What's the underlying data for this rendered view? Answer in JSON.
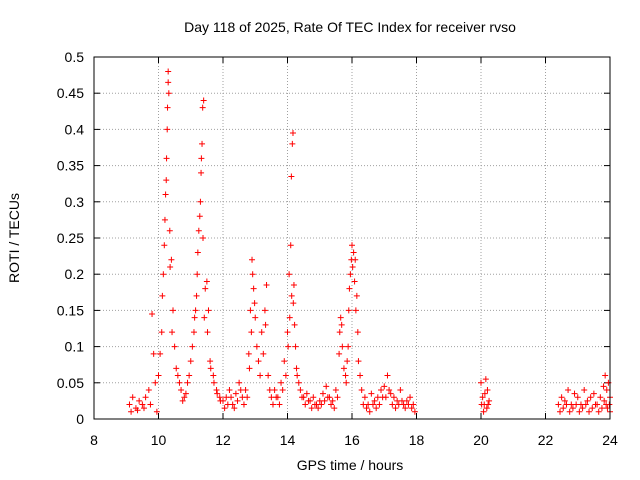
{
  "chart_data": {
    "type": "scatter",
    "title": "Day 118 of 2025, Rate Of TEC Index for receiver rvso",
    "xlabel": "GPS time / hours",
    "ylabel": "ROTI / TECUs",
    "xlim": [
      8,
      24
    ],
    "ylim": [
      0,
      0.5
    ],
    "xticks": [
      8,
      10,
      12,
      14,
      16,
      18,
      20,
      22,
      24
    ],
    "xtick_labels": [
      "8",
      "10",
      "12",
      "14",
      "16",
      "18",
      "20",
      "22",
      "24"
    ],
    "yticks": [
      0,
      0.05,
      0.1,
      0.15,
      0.2,
      0.25,
      0.3,
      0.35,
      0.4,
      0.45,
      0.5
    ],
    "ytick_labels": [
      "0",
      "0.05",
      "0.1",
      "0.15",
      "0.2",
      "0.25",
      "0.3",
      "0.35",
      "0.4",
      "0.45",
      "0.5"
    ],
    "grid": true,
    "marker": "+",
    "color": "#ff0000",
    "series": [
      {
        "name": "ROTI",
        "points": [
          [
            9.1,
            0.02
          ],
          [
            9.2,
            0.03
          ],
          [
            9.3,
            0.015
          ],
          [
            9.4,
            0.025
          ],
          [
            9.5,
            0.02
          ],
          [
            9.6,
            0.03
          ],
          [
            9.7,
            0.04
          ],
          [
            9.8,
            0.145
          ],
          [
            9.85,
            0.09
          ],
          [
            9.9,
            0.05
          ],
          [
            10.0,
            0.06
          ],
          [
            10.1,
            0.12
          ],
          [
            10.15,
            0.2
          ],
          [
            10.2,
            0.275
          ],
          [
            10.22,
            0.31
          ],
          [
            10.25,
            0.36
          ],
          [
            10.27,
            0.4
          ],
          [
            10.28,
            0.43
          ],
          [
            10.3,
            0.465
          ],
          [
            10.3,
            0.48
          ],
          [
            10.32,
            0.45
          ],
          [
            10.35,
            0.26
          ],
          [
            10.4,
            0.22
          ],
          [
            10.45,
            0.15
          ],
          [
            10.5,
            0.1
          ],
          [
            10.6,
            0.06
          ],
          [
            10.7,
            0.04
          ],
          [
            10.8,
            0.03
          ],
          [
            10.9,
            0.05
          ],
          [
            11.0,
            0.08
          ],
          [
            11.1,
            0.12
          ],
          [
            11.15,
            0.15
          ],
          [
            11.2,
            0.2
          ],
          [
            11.25,
            0.26
          ],
          [
            11.3,
            0.3
          ],
          [
            11.32,
            0.34
          ],
          [
            11.35,
            0.38
          ],
          [
            11.37,
            0.43
          ],
          [
            11.4,
            0.44
          ],
          [
            11.45,
            0.18
          ],
          [
            11.5,
            0.19
          ],
          [
            11.55,
            0.15
          ],
          [
            11.6,
            0.08
          ],
          [
            11.7,
            0.06
          ],
          [
            11.8,
            0.04
          ],
          [
            11.9,
            0.03
          ],
          [
            12.0,
            0.025
          ],
          [
            12.1,
            0.03
          ],
          [
            12.2,
            0.04
          ],
          [
            12.3,
            0.02
          ],
          [
            12.4,
            0.035
          ],
          [
            12.5,
            0.05
          ],
          [
            12.6,
            0.03
          ],
          [
            12.7,
            0.04
          ],
          [
            12.8,
            0.09
          ],
          [
            12.85,
            0.15
          ],
          [
            12.9,
            0.22
          ],
          [
            12.95,
            0.18
          ],
          [
            13.0,
            0.14
          ],
          [
            13.1,
            0.08
          ],
          [
            13.2,
            0.12
          ],
          [
            13.3,
            0.15
          ],
          [
            13.35,
            0.185
          ],
          [
            13.4,
            0.06
          ],
          [
            13.5,
            0.03
          ],
          [
            13.6,
            0.04
          ],
          [
            13.7,
            0.03
          ],
          [
            13.8,
            0.05
          ],
          [
            13.9,
            0.08
          ],
          [
            14.0,
            0.12
          ],
          [
            14.05,
            0.2
          ],
          [
            14.1,
            0.24
          ],
          [
            14.12,
            0.335
          ],
          [
            14.15,
            0.38
          ],
          [
            14.17,
            0.395
          ],
          [
            14.2,
            0.185
          ],
          [
            14.25,
            0.1
          ],
          [
            14.3,
            0.06
          ],
          [
            14.4,
            0.04
          ],
          [
            14.5,
            0.03
          ],
          [
            14.6,
            0.035
          ],
          [
            14.7,
            0.025
          ],
          [
            14.8,
            0.03
          ],
          [
            14.9,
            0.02
          ],
          [
            15.0,
            0.025
          ],
          [
            15.1,
            0.035
          ],
          [
            15.2,
            0.045
          ],
          [
            15.3,
            0.03
          ],
          [
            15.4,
            0.025
          ],
          [
            15.5,
            0.04
          ],
          [
            15.6,
            0.09
          ],
          [
            15.65,
            0.14
          ],
          [
            15.7,
            0.1
          ],
          [
            15.8,
            0.06
          ],
          [
            15.85,
            0.08
          ],
          [
            15.9,
            0.15
          ],
          [
            15.95,
            0.2
          ],
          [
            16.0,
            0.24
          ],
          [
            16.05,
            0.23
          ],
          [
            16.1,
            0.22
          ],
          [
            16.15,
            0.17
          ],
          [
            16.2,
            0.08
          ],
          [
            16.3,
            0.04
          ],
          [
            16.4,
            0.03
          ],
          [
            16.5,
            0.02
          ],
          [
            16.6,
            0.035
          ],
          [
            16.7,
            0.025
          ],
          [
            16.8,
            0.03
          ],
          [
            16.9,
            0.04
          ],
          [
            17.0,
            0.045
          ],
          [
            17.1,
            0.06
          ],
          [
            17.2,
            0.035
          ],
          [
            17.3,
            0.03
          ],
          [
            17.4,
            0.025
          ],
          [
            17.5,
            0.04
          ],
          [
            17.6,
            0.02
          ],
          [
            17.7,
            0.025
          ],
          [
            17.8,
            0.03
          ],
          [
            17.9,
            0.02
          ],
          [
            20.0,
            0.05
          ],
          [
            20.05,
            0.03
          ],
          [
            20.1,
            0.02
          ],
          [
            20.15,
            0.055
          ],
          [
            20.2,
            0.04
          ],
          [
            20.25,
            0.025
          ],
          [
            22.4,
            0.02
          ],
          [
            22.5,
            0.03
          ],
          [
            22.6,
            0.025
          ],
          [
            22.7,
            0.04
          ],
          [
            22.8,
            0.02
          ],
          [
            22.9,
            0.035
          ],
          [
            23.0,
            0.03
          ],
          [
            23.1,
            0.02
          ],
          [
            23.2,
            0.04
          ],
          [
            23.3,
            0.025
          ],
          [
            23.4,
            0.03
          ],
          [
            23.5,
            0.035
          ],
          [
            23.6,
            0.02
          ],
          [
            23.7,
            0.03
          ],
          [
            23.8,
            0.045
          ],
          [
            23.85,
            0.06
          ],
          [
            23.9,
            0.04
          ],
          [
            23.95,
            0.05
          ],
          [
            24.0,
            0.03
          ],
          [
            9.15,
            0.01
          ],
          [
            9.35,
            0.012
          ],
          [
            9.55,
            0.015
          ],
          [
            9.75,
            0.02
          ],
          [
            9.95,
            0.01
          ],
          [
            10.05,
            0.09
          ],
          [
            10.12,
            0.17
          ],
          [
            10.18,
            0.24
          ],
          [
            10.24,
            0.33
          ],
          [
            10.36,
            0.21
          ],
          [
            10.42,
            0.12
          ],
          [
            10.55,
            0.07
          ],
          [
            10.65,
            0.05
          ],
          [
            10.75,
            0.025
          ],
          [
            10.85,
            0.035
          ],
          [
            10.95,
            0.06
          ],
          [
            11.05,
            0.1
          ],
          [
            11.12,
            0.14
          ],
          [
            11.18,
            0.17
          ],
          [
            11.22,
            0.23
          ],
          [
            11.28,
            0.28
          ],
          [
            11.33,
            0.36
          ],
          [
            11.38,
            0.25
          ],
          [
            11.42,
            0.14
          ],
          [
            11.52,
            0.12
          ],
          [
            11.62,
            0.07
          ],
          [
            11.72,
            0.05
          ],
          [
            11.82,
            0.035
          ],
          [
            11.92,
            0.025
          ],
          [
            12.05,
            0.015
          ],
          [
            12.15,
            0.02
          ],
          [
            12.25,
            0.03
          ],
          [
            12.35,
            0.015
          ],
          [
            12.45,
            0.025
          ],
          [
            12.55,
            0.04
          ],
          [
            12.65,
            0.02
          ],
          [
            12.75,
            0.03
          ],
          [
            12.82,
            0.07
          ],
          [
            12.88,
            0.12
          ],
          [
            12.92,
            0.2
          ],
          [
            12.98,
            0.16
          ],
          [
            13.05,
            0.1
          ],
          [
            13.15,
            0.06
          ],
          [
            13.25,
            0.09
          ],
          [
            13.32,
            0.13
          ],
          [
            13.45,
            0.04
          ],
          [
            13.55,
            0.02
          ],
          [
            13.65,
            0.03
          ],
          [
            13.75,
            0.02
          ],
          [
            13.85,
            0.04
          ],
          [
            13.95,
            0.06
          ],
          [
            14.02,
            0.1
          ],
          [
            14.07,
            0.14
          ],
          [
            14.13,
            0.17
          ],
          [
            14.18,
            0.16
          ],
          [
            14.22,
            0.13
          ],
          [
            14.28,
            0.07
          ],
          [
            14.35,
            0.05
          ],
          [
            14.45,
            0.03
          ],
          [
            14.55,
            0.02
          ],
          [
            14.65,
            0.025
          ],
          [
            14.75,
            0.015
          ],
          [
            14.85,
            0.02
          ],
          [
            14.95,
            0.015
          ],
          [
            15.05,
            0.02
          ],
          [
            15.15,
            0.025
          ],
          [
            15.25,
            0.03
          ],
          [
            15.35,
            0.02
          ],
          [
            15.45,
            0.015
          ],
          [
            15.55,
            0.03
          ],
          [
            15.62,
            0.12
          ],
          [
            15.68,
            0.13
          ],
          [
            15.75,
            0.07
          ],
          [
            15.82,
            0.05
          ],
          [
            15.88,
            0.1
          ],
          [
            15.92,
            0.18
          ],
          [
            15.98,
            0.22
          ],
          [
            16.02,
            0.21
          ],
          [
            16.08,
            0.19
          ],
          [
            16.12,
            0.15
          ],
          [
            16.18,
            0.12
          ],
          [
            16.25,
            0.06
          ],
          [
            16.35,
            0.02
          ],
          [
            16.45,
            0.015
          ],
          [
            16.55,
            0.01
          ],
          [
            16.65,
            0.02
          ],
          [
            16.75,
            0.015
          ],
          [
            16.85,
            0.02
          ],
          [
            16.95,
            0.03
          ],
          [
            17.05,
            0.03
          ],
          [
            17.15,
            0.04
          ],
          [
            17.25,
            0.02
          ],
          [
            17.35,
            0.015
          ],
          [
            17.45,
            0.02
          ],
          [
            17.55,
            0.025
          ],
          [
            17.65,
            0.015
          ],
          [
            17.75,
            0.02
          ],
          [
            17.85,
            0.015
          ],
          [
            17.95,
            0.01
          ],
          [
            20.02,
            0.02
          ],
          [
            20.08,
            0.01
          ],
          [
            20.12,
            0.035
          ],
          [
            20.18,
            0.015
          ],
          [
            20.22,
            0.02
          ],
          [
            22.45,
            0.01
          ],
          [
            22.55,
            0.015
          ],
          [
            22.65,
            0.02
          ],
          [
            22.75,
            0.01
          ],
          [
            22.85,
            0.015
          ],
          [
            22.95,
            0.02
          ],
          [
            23.05,
            0.01
          ],
          [
            23.15,
            0.015
          ],
          [
            23.25,
            0.02
          ],
          [
            23.35,
            0.01
          ],
          [
            23.45,
            0.015
          ],
          [
            23.55,
            0.02
          ],
          [
            23.65,
            0.01
          ],
          [
            23.75,
            0.015
          ],
          [
            23.82,
            0.025
          ],
          [
            23.88,
            0.02
          ],
          [
            23.92,
            0.015
          ],
          [
            23.98,
            0.02
          ],
          [
            24.0,
            0.01
          ]
        ]
      }
    ]
  }
}
